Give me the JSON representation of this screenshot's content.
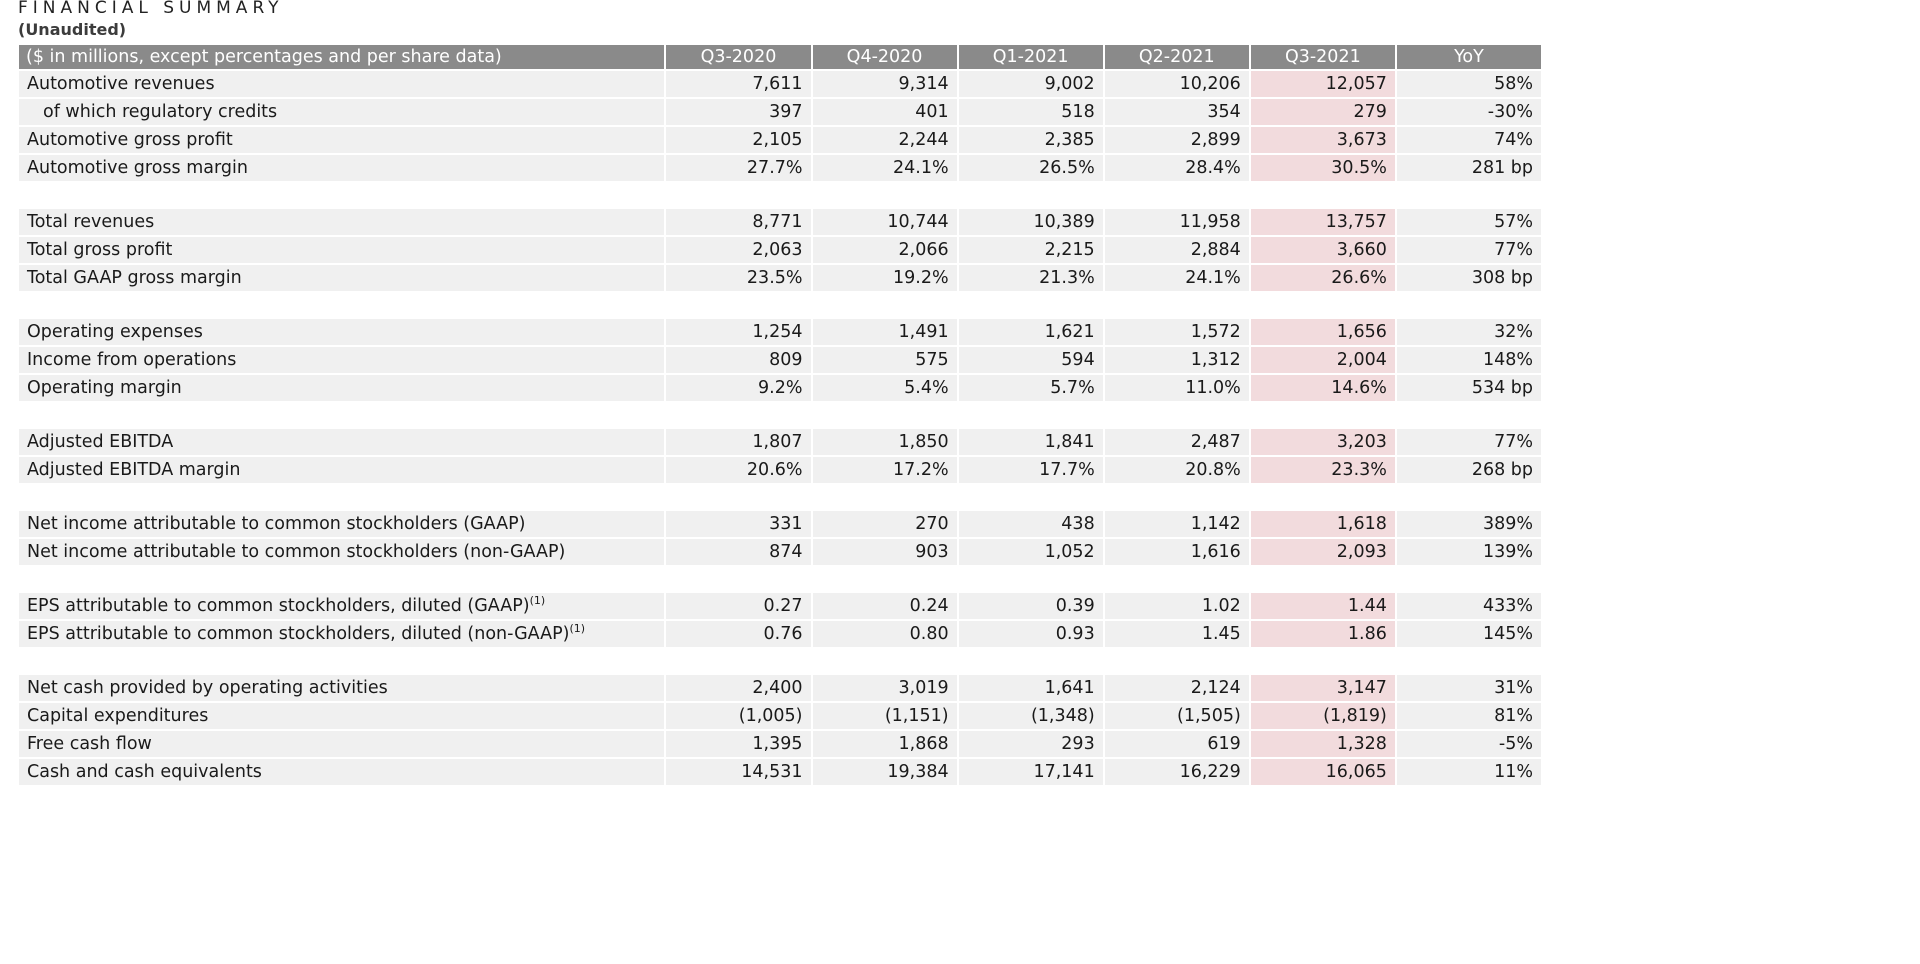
{
  "title": "FINANCIAL SUMMARY",
  "subtitle": "(Unaudited)",
  "header": {
    "label": "($ in millions, except percentages and per share data)",
    "columns": [
      "Q3-2020",
      "Q4-2020",
      "Q1-2021",
      "Q2-2021",
      "Q3-2021",
      "YoY"
    ]
  },
  "highlight_color": "#f2dbdd",
  "header_color": "#8a8a8a",
  "groups": [
    {
      "rows": [
        {
          "label": "Automotive revenues",
          "values": [
            "7,611",
            "9,314",
            "9,002",
            "10,206",
            "12,057",
            "58%"
          ]
        },
        {
          "label": "of which regulatory credits",
          "values": [
            "397",
            "401",
            "518",
            "354",
            "279",
            "-30%"
          ]
        },
        {
          "label": "Automotive gross profit",
          "values": [
            "2,105",
            "2,244",
            "2,385",
            "2,899",
            "3,673",
            "74%"
          ]
        },
        {
          "label": "Automotive gross margin",
          "values": [
            "27.7%",
            "24.1%",
            "26.5%",
            "28.4%",
            "30.5%",
            "281 bp"
          ]
        }
      ]
    },
    {
      "rows": [
        {
          "label": "Total revenues",
          "values": [
            "8,771",
            "10,744",
            "10,389",
            "11,958",
            "13,757",
            "57%"
          ]
        },
        {
          "label": "Total gross profit",
          "values": [
            "2,063",
            "2,066",
            "2,215",
            "2,884",
            "3,660",
            "77%"
          ]
        },
        {
          "label": "Total GAAP gross margin",
          "values": [
            "23.5%",
            "19.2%",
            "21.3%",
            "24.1%",
            "26.6%",
            "308 bp"
          ]
        }
      ]
    },
    {
      "rows": [
        {
          "label": "Operating expenses",
          "values": [
            "1,254",
            "1,491",
            "1,621",
            "1,572",
            "1,656",
            "32%"
          ]
        },
        {
          "label": "Income from operations",
          "values": [
            "809",
            "575",
            "594",
            "1,312",
            "2,004",
            "148%"
          ]
        },
        {
          "label": "Operating margin",
          "values": [
            "9.2%",
            "5.4%",
            "5.7%",
            "11.0%",
            "14.6%",
            "534 bp"
          ]
        }
      ]
    },
    {
      "rows": [
        {
          "label": "Adjusted EBITDA",
          "values": [
            "1,807",
            "1,850",
            "1,841",
            "2,487",
            "3,203",
            "77%"
          ]
        },
        {
          "label": "Adjusted EBITDA margin",
          "values": [
            "20.6%",
            "17.2%",
            "17.7%",
            "20.8%",
            "23.3%",
            "268 bp"
          ]
        }
      ]
    },
    {
      "rows": [
        {
          "label": "Net income attributable to common stockholders (GAAP)",
          "values": [
            "331",
            "270",
            "438",
            "1,142",
            "1,618",
            "389%"
          ]
        },
        {
          "label": "Net income attributable to common stockholders (non-GAAP)",
          "values": [
            "874",
            "903",
            "1,052",
            "1,616",
            "2,093",
            "139%"
          ]
        }
      ]
    },
    {
      "rows": [
        {
          "label": "EPS attributable to common stockholders, diluted (GAAP)",
          "footnote": "(1)",
          "values": [
            "0.27",
            "0.24",
            "0.39",
            "1.02",
            "1.44",
            "433%"
          ]
        },
        {
          "label": "EPS attributable to common stockholders, diluted (non-GAAP)",
          "footnote": "(1)",
          "values": [
            "0.76",
            "0.80",
            "0.93",
            "1.45",
            "1.86",
            "145%"
          ]
        }
      ]
    },
    {
      "rows": [
        {
          "label": "Net cash provided by operating activities",
          "values": [
            "2,400",
            "3,019",
            "1,641",
            "2,124",
            "3,147",
            "31%"
          ]
        },
        {
          "label": "Capital expenditures",
          "values": [
            "(1,005)",
            "(1,151)",
            "(1,348)",
            "(1,505)",
            "(1,819)",
            "81%"
          ]
        },
        {
          "label": "Free cash flow",
          "values": [
            "1,395",
            "1,868",
            "293",
            "619",
            "1,328",
            "-5%"
          ]
        },
        {
          "label": "Cash and cash equivalents",
          "values": [
            "14,531",
            "19,384",
            "17,141",
            "16,229",
            "16,065",
            "11%"
          ]
        }
      ]
    }
  ]
}
